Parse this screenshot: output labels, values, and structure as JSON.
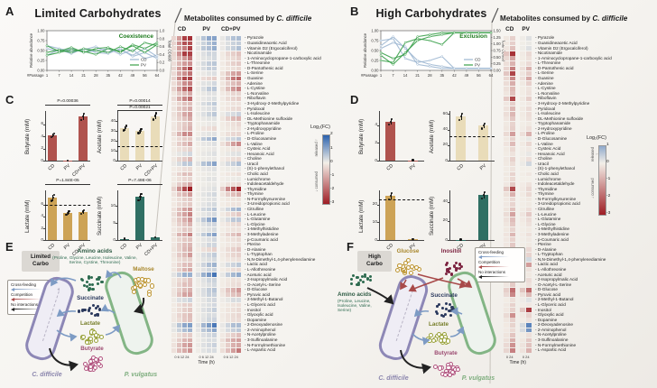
{
  "panelA": {
    "label": "A",
    "title": "Limited Carbohydrates"
  },
  "panelB": {
    "label": "B",
    "title": "High Carbohydrates"
  },
  "panelC": {
    "label": "C"
  },
  "panelD": {
    "label": "D"
  },
  "header_left": {
    "prefix": "Metabolites consumed by ",
    "species": "C. difficile"
  },
  "header_right": {
    "prefix": "Metabolites consumed by ",
    "species": "C. difficile"
  },
  "interaction_legend": [
    {
      "label": "Cross-feeding",
      "color": "#7d9bc4"
    },
    {
      "label": "Competition",
      "color": "#a84a4a"
    },
    {
      "label": "No interactions",
      "color": "#222222"
    }
  ],
  "panelE": {
    "label": "E",
    "condition1": "Limited",
    "condition2": "Carbo",
    "amino_title": "Amino acids",
    "amino_list": "(Proline, Glycine, Leucine, Isoleucine, Valine, Serine, Cystine, Threonine)",
    "species1": "C. difficile",
    "species2": "P. vulgatus",
    "nodes": {
      "amino": {
        "label": "Amino acids",
        "color": "#2e6b50",
        "style": "solid"
      },
      "maltose": {
        "label": "Maltose",
        "color": "#bd9531",
        "style": "ring"
      },
      "succinate": {
        "label": "Succinate",
        "color": "#2c3a5e",
        "style": "solid"
      },
      "lactate": {
        "label": "Lactate",
        "color": "#99a23a",
        "style": "ring"
      },
      "butyrate": {
        "label": "Butyrate",
        "color": "#b25480",
        "style": "ring"
      }
    }
  },
  "panelF": {
    "label": "F",
    "condition1": "High",
    "condition2": "Carbo",
    "amino_title": "Amino acids",
    "amino_list": "(Proline, Leucine, Isoleucine, Valine, Serine)",
    "species1": "C. difficile",
    "species2": "P. vulgatus",
    "nodes": {
      "amino": {
        "label": "Amino acids",
        "color": "#2e6b50",
        "style": "solid"
      },
      "glucose": {
        "label": "Glucose",
        "color": "#bd9531",
        "style": "ring"
      },
      "inositol": {
        "label": "Inositol",
        "color": "#7c2340",
        "style": "solid"
      },
      "succinate": {
        "label": "Succinate",
        "color": "#2c3a5e",
        "style": "solid"
      },
      "lactate": {
        "label": "Lactate",
        "color": "#99a23a",
        "style": "ring"
      },
      "butyrate": {
        "label": "Butyrate",
        "color": "#b25480",
        "style": "ring"
      }
    }
  },
  "metabolites": [
    "Pyrazole",
    "Guanidineacetic Acid",
    "Vitamin D2 (Ergocalciferol)",
    "Nicotinamide",
    "1-Aminocyclopropane-1-carboxylic acid",
    "L-Threonine",
    "D-Pantothenic acid",
    "L-Serine",
    "Guanine",
    "Adenine",
    "L-Cystine",
    "L-Norvaline",
    "Riboflavin",
    "3-Hydroxy-2-Methylpyridine",
    "Pyridoxal",
    "L-Isoleucine",
    "DL-Methionine sulfoxide",
    "Tryptophanamide",
    "2-Hydroxypyridine",
    "L-Proline",
    "D-Glucosamine",
    "L-Valine",
    "Cysteic Acid",
    "Hexanoic Acid",
    "Choline",
    "Uracil",
    "(S)-1-phenylethanol",
    "Cholic acid",
    "Lumichrome",
    "Indoleacetaldehyde",
    "Thymidine",
    "Thymine",
    "N-Formylkynurenine",
    "3-Ureidopropionic acid",
    "Citrulline",
    "L-Leucine",
    "L-Glutamine",
    "L-Glycine",
    "1-Methylhistidine",
    "3-Methyladenine",
    "p-Coumaric acid",
    "Pterine",
    "D-Alanine",
    "L-Tryptophan",
    "N,N-Dimethyl-1,4-phenylenediamine",
    "Lactic acid",
    "L-Allothreonine",
    "Aceturic acid",
    "2-Isopropylmalic Acid",
    "O-Acetyl-L-Serine",
    "D-Glucose",
    "Pyruvic acid",
    "2-Methyl-1-Butanol",
    "L-Glyceric acid",
    "Inositol",
    "Glyoxylic acid",
    "Dopamine",
    "2-Deoxyadenosine",
    "2-Aminophenol",
    "N-Acetylproline",
    "3-Sulfinoalanine",
    "N-Formylmethionine",
    "L-Aspartic Acid"
  ],
  "chart_data": [
    {
      "id": "lineA",
      "type": "line",
      "annotation": "Coexistence",
      "xlabel": "#Passage",
      "ylabel": "Relative abundance",
      "ylabel_right": "Total OD600",
      "x": [
        1,
        7,
        14,
        21,
        28,
        35,
        42,
        49,
        56,
        64
      ],
      "yticks_left": [
        "1.00",
        "0.75",
        "0.50",
        "0.25",
        "0.00"
      ],
      "yticks_right": [
        "1.0",
        "0.8",
        "0.6",
        "0.4",
        "0.2",
        "0.0"
      ],
      "legend": [
        "CD",
        "PV"
      ],
      "series": [
        {
          "name": "CD",
          "color": "#9db7d2",
          "lines": [
            [
              0.62,
              0.55,
              0.48,
              0.52,
              0.6,
              0.45,
              0.52,
              0.38,
              0.55,
              0.35
            ],
            [
              0.55,
              0.48,
              0.55,
              0.45,
              0.5,
              0.55,
              0.4,
              0.52,
              0.3,
              0.38
            ],
            [
              0.38,
              0.52,
              0.42,
              0.55,
              0.45,
              0.42,
              0.55,
              0.35,
              0.45,
              0.3
            ]
          ]
        },
        {
          "name": "PV",
          "color": "#3aa04a",
          "lines": [
            [
              0.38,
              0.45,
              0.52,
              0.48,
              0.4,
              0.55,
              0.48,
              0.62,
              0.45,
              0.65
            ],
            [
              0.45,
              0.52,
              0.45,
              0.55,
              0.5,
              0.45,
              0.6,
              0.48,
              0.7,
              0.62
            ],
            [
              0.62,
              0.48,
              0.58,
              0.45,
              0.55,
              0.58,
              0.45,
              0.65,
              0.55,
              0.7
            ]
          ]
        }
      ]
    },
    {
      "id": "lineB",
      "type": "line",
      "annotation": "Exclusion",
      "xlabel": "#Passage",
      "ylabel": "Relative abundance",
      "ylabel_right": "Total OD600",
      "x": [
        1,
        7,
        14,
        21,
        28,
        35,
        42,
        49,
        56,
        64
      ],
      "yticks_left": [
        "1.00",
        "0.75",
        "0.50",
        "0.25",
        "0.00"
      ],
      "yticks_right": [
        "1.50",
        "1.25",
        "1.00",
        "0.75",
        "0.50",
        "0.25",
        "0.00"
      ],
      "legend": [
        "CD",
        "PV"
      ],
      "series": [
        {
          "name": "CD",
          "color": "#9db7d2",
          "lines": [
            [
              0.62,
              0.85,
              0.55,
              0.25,
              0.15,
              0.1,
              0.05,
              0.05,
              0.05,
              0.05
            ],
            [
              0.75,
              0.8,
              0.3,
              0.2,
              0.25,
              0.35,
              0.05,
              0.05,
              0.05,
              0.05
            ],
            [
              0.55,
              0.7,
              0.6,
              0.15,
              0.1,
              0.05,
              0.05,
              0.05,
              0.05,
              0.05
            ]
          ]
        },
        {
          "name": "PV",
          "color": "#3aa04a",
          "lines": [
            [
              0.38,
              0.15,
              0.45,
              0.75,
              0.85,
              0.9,
              0.95,
              0.95,
              0.95,
              0.95
            ],
            [
              0.25,
              0.2,
              0.7,
              0.8,
              0.75,
              0.65,
              0.95,
              0.95,
              0.95,
              0.95
            ],
            [
              0.45,
              0.3,
              0.4,
              0.85,
              0.9,
              0.95,
              0.95,
              0.95,
              0.95,
              0.95
            ]
          ]
        }
      ]
    },
    {
      "id": "barC1",
      "type": "bar",
      "ylabel": "Butyrate (mM)",
      "categories": [
        "CD",
        "PV",
        "CD+PV"
      ],
      "values": [
        4.2,
        0.05,
        7.3
      ],
      "color": "#b0534e",
      "yticks": [
        0,
        2,
        4,
        6
      ],
      "ymax": 8.2,
      "pvalues": [
        "P=0.00036"
      ]
    },
    {
      "id": "barC2",
      "type": "bar",
      "ylabel": "Acetate (mM)",
      "categories": [
        "CD",
        "PV",
        "CD+PV"
      ],
      "values": [
        33,
        30,
        45
      ],
      "color": "#e9dcb9",
      "yticks": [
        0,
        10,
        20,
        30,
        40
      ],
      "ymax": 50,
      "dash": 15,
      "pvalues": [
        "P=0.00014",
        "P=0.00021"
      ]
    },
    {
      "id": "barC3",
      "type": "bar",
      "ylabel": "Lactate (mM)",
      "categories": [
        "CD",
        "PV",
        "CD+PV"
      ],
      "values": [
        7.2,
        4.6,
        4.8
      ],
      "color": "#cda356",
      "yticks": [
        0,
        2,
        4,
        6
      ],
      "ymax": 8.4,
      "dash": 6,
      "pvalues": [
        "P=1.84E-05"
      ]
    },
    {
      "id": "barC4",
      "type": "bar",
      "ylabel": "Succinate (mM)",
      "categories": [
        "CD",
        "PV",
        "CD+PV"
      ],
      "values": [
        0.4,
        12.6,
        0.7
      ],
      "color": "#2f6f63",
      "yticks": [
        0,
        5,
        10
      ],
      "ymax": 14.5,
      "pvalues": [
        "P=7.49E-06"
      ]
    },
    {
      "id": "barD1",
      "type": "bar",
      "ylabel": "Butyrate (mM)",
      "categories": [
        "CD",
        "PV"
      ],
      "values": [
        4.4,
        0.05
      ],
      "color": "#b0534e",
      "yticks": [
        0,
        2,
        4
      ],
      "ymax": 5.6,
      "pvalues": []
    },
    {
      "id": "barD2",
      "type": "bar",
      "ylabel": "Acetate (mM)",
      "categories": [
        "CD",
        "PV"
      ],
      "values": [
        57,
        45
      ],
      "color": "#e9dcb9",
      "yticks": [
        0,
        20,
        40,
        60
      ],
      "ymax": 64,
      "dash": 32,
      "pvalues": []
    },
    {
      "id": "barD3",
      "type": "bar",
      "ylabel": "Lactate (mM)",
      "categories": [
        "CD",
        "PV"
      ],
      "values": [
        25,
        0.4
      ],
      "color": "#cda356",
      "yticks": [
        0,
        10,
        20
      ],
      "ymax": 28,
      "dash": 23,
      "pvalues": []
    },
    {
      "id": "barD4",
      "type": "bar",
      "ylabel": "Succinate (mM)",
      "categories": [
        "CD",
        "PV"
      ],
      "values": [
        0.5,
        47
      ],
      "color": "#2f6f63",
      "yticks": [
        0,
        20,
        40
      ],
      "ymax": 52,
      "pvalues": []
    },
    {
      "id": "heatA",
      "type": "heatmap",
      "columns": [
        "CD",
        "PV",
        "CD+PV"
      ],
      "timepoints": [
        "0",
        "6",
        "12",
        "24"
      ],
      "xlabel": "Time (h)",
      "colorbar": {
        "title": "Log₂(FC)",
        "ticks": [
          2,
          1,
          0,
          -1,
          -2,
          -3
        ],
        "released": "released",
        "consumed": "consumed"
      },
      "values": [
        [
          -2.8,
          1.2,
          0.8
        ],
        [
          -2.5,
          0.9,
          0.5
        ],
        [
          -2.2,
          1.0,
          0.6
        ],
        [
          -2.8,
          0.4,
          -0.6
        ],
        [
          -1.8,
          0.3,
          -0.4
        ],
        [
          -1.5,
          0.6,
          -0.5
        ],
        [
          -2.4,
          0.5,
          -0.3
        ],
        [
          -2.0,
          0.2,
          -1.4
        ],
        [
          -2.9,
          -0.5,
          -2.0
        ],
        [
          -1.6,
          0.3,
          -0.8
        ],
        [
          -2.5,
          0.6,
          -1.5
        ],
        [
          -1.0,
          0.2,
          -0.4
        ],
        [
          -1.8,
          0.2,
          -0.5
        ],
        [
          -0.8,
          0.5,
          -0.2
        ],
        [
          -1.0,
          0.3,
          -0.3
        ],
        [
          -1.2,
          0.5,
          0.4
        ],
        [
          -0.9,
          0.2,
          -1.0
        ],
        [
          -0.7,
          0.1,
          -0.3
        ],
        [
          -0.8,
          -0.3,
          -0.2
        ],
        [
          -1.6,
          0.2,
          -0.4
        ],
        [
          -0.6,
          1.0,
          0.5
        ],
        [
          -0.9,
          0.2,
          -1.3
        ],
        [
          -0.4,
          0.1,
          -0.2
        ],
        [
          0.3,
          0.2,
          0.2
        ],
        [
          -0.7,
          0.1,
          -0.3
        ],
        [
          0.6,
          1.1,
          0.6
        ],
        [
          -0.3,
          0.2,
          0.1
        ],
        [
          -0.8,
          0.1,
          -0.2
        ],
        [
          -0.4,
          0.2,
          0.1
        ],
        [
          -0.9,
          0.1,
          -0.3
        ],
        [
          -3.0,
          0.2,
          -3.0
        ],
        [
          -1.1,
          0.3,
          -0.9
        ],
        [
          -0.5,
          0.2,
          -0.2
        ],
        [
          -0.6,
          0.3,
          -0.2
        ],
        [
          -1.2,
          0.6,
          0.8
        ],
        [
          -1.4,
          0.3,
          -0.5
        ],
        [
          -1.3,
          1.2,
          0.6
        ],
        [
          -0.9,
          0.4,
          -0.3
        ],
        [
          -0.6,
          0.3,
          -0.2
        ],
        [
          -1.5,
          1.0,
          -0.8
        ],
        [
          -0.7,
          0.3,
          -0.3
        ],
        [
          -0.8,
          0.4,
          -0.2
        ],
        [
          -1.0,
          -0.4,
          -0.5
        ],
        [
          -1.1,
          0.5,
          -0.4
        ],
        [
          -0.5,
          0.3,
          -0.2
        ],
        [
          -0.8,
          0.8,
          0.5
        ],
        [
          -1.0,
          0.4,
          -0.3
        ],
        [
          1.0,
          1.8,
          0.9
        ],
        [
          -0.6,
          0.4,
          -0.2
        ],
        [
          -0.8,
          0.3,
          -0.3
        ],
        [
          -0.9,
          0.6,
          -1.2
        ],
        [
          -1.2,
          0.5,
          -0.8
        ],
        [
          0.4,
          0.3,
          0.3
        ],
        [
          -0.5,
          0.3,
          -0.2
        ],
        [
          -0.6,
          0.4,
          -0.3
        ],
        [
          -0.7,
          0.3,
          -0.4
        ],
        [
          -0.6,
          0.4,
          -0.3
        ],
        [
          1.2,
          1.5,
          0.8
        ],
        [
          0.8,
          1.0,
          0.5
        ],
        [
          -0.5,
          0.4,
          -0.6
        ],
        [
          -1.0,
          0.3,
          -1.3
        ],
        [
          -1.2,
          0.4,
          -1.0
        ],
        [
          -1.4,
          0.3,
          -1.5
        ]
      ]
    },
    {
      "id": "heatB",
      "type": "heatmap",
      "columns": [
        "CD",
        "PV"
      ],
      "timepoints": [
        "0",
        "24"
      ],
      "xlabel": "Time (h)",
      "colorbar": {
        "title": "Log₂(FC)",
        "ticks": [
          1,
          0,
          -1,
          -2,
          -3
        ],
        "released": "released",
        "consumed": "consumed"
      },
      "values": [
        [
          -0.5,
          0.2
        ],
        [
          -0.4,
          0.1
        ],
        [
          -0.6,
          0.2
        ],
        [
          -2.8,
          -0.3
        ],
        [
          -1.2,
          -0.2
        ],
        [
          -0.8,
          -0.3
        ],
        [
          -1.6,
          -0.8
        ],
        [
          -2.4,
          -0.5
        ],
        [
          -1.4,
          -0.9
        ],
        [
          -1.0,
          -0.4
        ],
        [
          -0.8,
          -0.2
        ],
        [
          -0.6,
          -0.2
        ],
        [
          -2.2,
          -0.4
        ],
        [
          -0.5,
          -0.1
        ],
        [
          -0.7,
          -0.3
        ],
        [
          -0.9,
          -0.3
        ],
        [
          -0.6,
          -0.2
        ],
        [
          -0.4,
          -0.1
        ],
        [
          -0.5,
          -0.2
        ],
        [
          -1.1,
          -0.8
        ],
        [
          -0.4,
          0.1
        ],
        [
          -0.7,
          -0.3
        ],
        [
          -0.3,
          -0.1
        ],
        [
          -0.2,
          0.1
        ],
        [
          -0.4,
          -0.2
        ],
        [
          -0.3,
          0.3
        ],
        [
          -0.2,
          0
        ],
        [
          -0.4,
          -0.1
        ],
        [
          -0.3,
          0
        ],
        [
          -0.5,
          -0.2
        ],
        [
          -2.6,
          -0.3
        ],
        [
          -0.8,
          -0.3
        ],
        [
          -0.3,
          -0.1
        ],
        [
          -0.4,
          -0.1
        ],
        [
          -0.6,
          -0.2
        ],
        [
          -1.0,
          -0.6
        ],
        [
          -0.8,
          -0.3
        ],
        [
          -0.6,
          -0.2
        ],
        [
          -0.4,
          -0.1
        ],
        [
          -0.7,
          -0.2
        ],
        [
          -0.4,
          -0.1
        ],
        [
          -0.5,
          -0.1
        ],
        [
          -0.7,
          -0.3
        ],
        [
          -0.8,
          -0.4
        ],
        [
          -0.3,
          0.3
        ],
        [
          -0.6,
          -1.2
        ],
        [
          -0.6,
          -0.2
        ],
        [
          -0.3,
          -0.1
        ],
        [
          -0.9,
          -0.3
        ],
        [
          -0.5,
          -0.2
        ],
        [
          -1.8,
          -2.2
        ],
        [
          -1.4,
          -0.8
        ],
        [
          -0.2,
          0.2
        ],
        [
          -0.4,
          -0.1
        ],
        [
          -0.5,
          -2.4
        ],
        [
          -1.3,
          -0.4
        ],
        [
          -0.5,
          -0.2
        ],
        [
          -0.4,
          1.4
        ],
        [
          -0.3,
          1.1
        ],
        [
          -0.6,
          -0.2
        ],
        [
          -1.0,
          -0.5
        ],
        [
          -1.2,
          -0.6
        ],
        [
          -1.5,
          -0.8
        ]
      ]
    }
  ]
}
